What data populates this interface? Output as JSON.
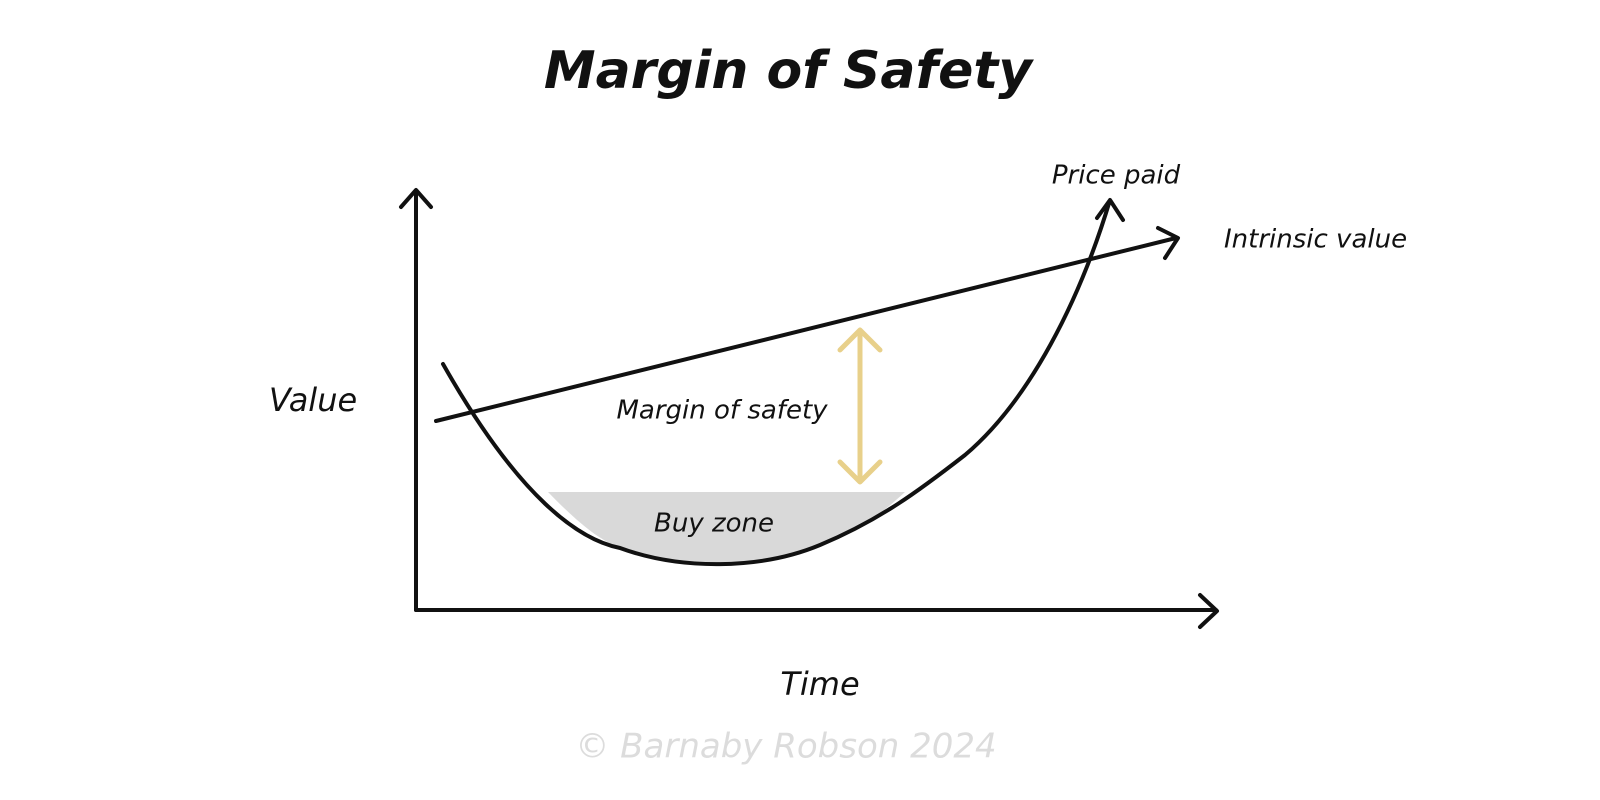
{
  "header": {
    "title": "Margin of Safety"
  },
  "axes": {
    "y_label": "Value",
    "x_label": "Time"
  },
  "lines": {
    "price": "Price paid",
    "intrinsic": "Intrinsic value"
  },
  "annotations": {
    "margin": "Margin of safety",
    "buy_zone": "Buy zone"
  },
  "footer": {
    "credit": "© Barnaby Robson 2024"
  }
}
